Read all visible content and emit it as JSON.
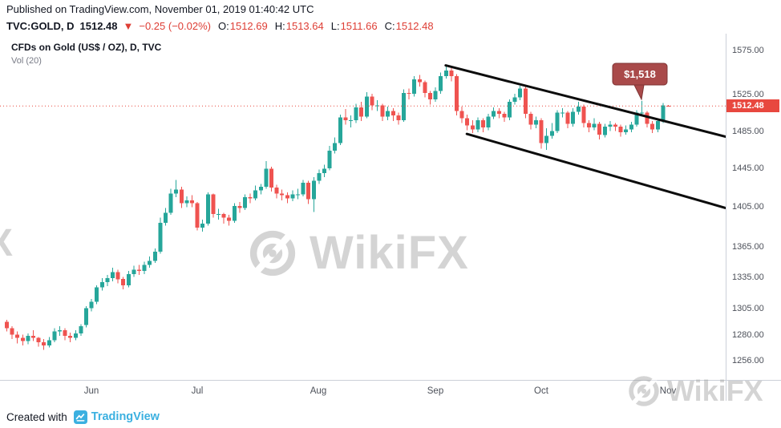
{
  "colors": {
    "up": "#26a69a",
    "down": "#ef5350",
    "negative_text": "#de3e35",
    "price_tag_bg": "#e8483f",
    "dotted_line": "#e8483f",
    "trendline": "#0c0c0c",
    "callout_bg": "#a94a4a",
    "callout_border": "#7e3434",
    "watermark": "#9a9a9a",
    "brand_blue": "#3bb0e0"
  },
  "header": {
    "published": "Published on TradingView.com, November 01, 2019 01:40:42 UTC",
    "symbol_interval": "TVC:GOLD, D",
    "last_price": "1512.48",
    "change_icon": "▼",
    "change": "−0.25 (−0.02%)",
    "ohlc": [
      {
        "label": "O:",
        "value": "1512.69"
      },
      {
        "label": "H:",
        "value": "1513.64"
      },
      {
        "label": "L:",
        "value": "1511.66"
      },
      {
        "label": "C:",
        "value": "1512.48"
      }
    ]
  },
  "legend": {
    "title": "CFDs on Gold (US$ / OZ), D, TVC",
    "indicator": "Vol (20)"
  },
  "watermark": {
    "text": "WikiFX",
    "partial_text": "X"
  },
  "footer": {
    "created_with": "Created with",
    "brand": "TradingView"
  },
  "chart_data": {
    "type": "candlestick",
    "title": "CFDs on Gold (US$ / OZ), D, TVC",
    "symbol": "TVC:GOLD",
    "interval": "D",
    "scale": "logarithmic",
    "ylim": [
      1238,
      1594
    ],
    "y_ticks": [
      1575,
      1525,
      1485,
      1445,
      1405,
      1365,
      1335,
      1305,
      1280,
      1256
    ],
    "x_axis_labels": [
      {
        "label": "Jun",
        "index": 16
      },
      {
        "label": "Jul",
        "index": 36
      },
      {
        "label": "Aug",
        "index": 59
      },
      {
        "label": "Sep",
        "index": 81
      },
      {
        "label": "Oct",
        "index": 101
      },
      {
        "label": "Nov",
        "index": 125
      }
    ],
    "candles": [
      [
        1292,
        1294,
        1283,
        1286
      ],
      [
        1286,
        1288,
        1276,
        1280
      ],
      [
        1280,
        1283,
        1272,
        1277
      ],
      [
        1277,
        1280,
        1270,
        1274
      ],
      [
        1274,
        1281,
        1271,
        1279
      ],
      [
        1279,
        1284,
        1274,
        1277
      ],
      [
        1277,
        1278,
        1269,
        1273
      ],
      [
        1273,
        1276,
        1266,
        1270
      ],
      [
        1270,
        1278,
        1268,
        1275
      ],
      [
        1275,
        1286,
        1273,
        1283
      ],
      [
        1283,
        1288,
        1279,
        1284
      ],
      [
        1284,
        1286,
        1275,
        1279
      ],
      [
        1279,
        1282,
        1273,
        1277
      ],
      [
        1277,
        1284,
        1275,
        1281
      ],
      [
        1281,
        1290,
        1279,
        1288
      ],
      [
        1289,
        1307,
        1287,
        1305
      ],
      [
        1305,
        1314,
        1302,
        1311
      ],
      [
        1311,
        1327,
        1309,
        1325
      ],
      [
        1325,
        1334,
        1322,
        1330
      ],
      [
        1330,
        1337,
        1326,
        1334
      ],
      [
        1334,
        1344,
        1331,
        1340
      ],
      [
        1340,
        1342,
        1329,
        1333
      ],
      [
        1333,
        1335,
        1323,
        1327
      ],
      [
        1327,
        1341,
        1325,
        1338
      ],
      [
        1338,
        1346,
        1335,
        1342
      ],
      [
        1342,
        1347,
        1337,
        1341
      ],
      [
        1341,
        1350,
        1338,
        1347
      ],
      [
        1347,
        1355,
        1344,
        1351
      ],
      [
        1351,
        1363,
        1349,
        1360
      ],
      [
        1360,
        1394,
        1358,
        1389
      ],
      [
        1389,
        1404,
        1386,
        1399
      ],
      [
        1399,
        1424,
        1397,
        1419
      ],
      [
        1419,
        1433,
        1415,
        1423
      ],
      [
        1423,
        1426,
        1404,
        1409
      ],
      [
        1409,
        1416,
        1405,
        1412
      ],
      [
        1412,
        1417,
        1405,
        1409
      ],
      [
        1409,
        1410,
        1381,
        1384
      ],
      [
        1384,
        1392,
        1380,
        1388
      ],
      [
        1388,
        1420,
        1386,
        1418
      ],
      [
        1418,
        1419,
        1394,
        1398
      ],
      [
        1398,
        1403,
        1392,
        1398
      ],
      [
        1398,
        1399,
        1388,
        1394
      ],
      [
        1394,
        1397,
        1386,
        1391
      ],
      [
        1391,
        1409,
        1389,
        1406
      ],
      [
        1406,
        1410,
        1399,
        1404
      ],
      [
        1404,
        1418,
        1402,
        1415
      ],
      [
        1415,
        1419,
        1409,
        1414
      ],
      [
        1414,
        1427,
        1412,
        1422
      ],
      [
        1422,
        1429,
        1418,
        1426
      ],
      [
        1426,
        1453,
        1424,
        1445
      ],
      [
        1445,
        1447,
        1421,
        1425
      ],
      [
        1425,
        1428,
        1414,
        1419
      ],
      [
        1419,
        1423,
        1412,
        1417
      ],
      [
        1417,
        1420,
        1409,
        1414
      ],
      [
        1414,
        1422,
        1411,
        1418
      ],
      [
        1418,
        1424,
        1413,
        1418
      ],
      [
        1418,
        1433,
        1416,
        1430
      ],
      [
        1430,
        1432,
        1408,
        1413
      ],
      [
        1413,
        1436,
        1400,
        1432
      ],
      [
        1432,
        1444,
        1429,
        1440
      ],
      [
        1440,
        1449,
        1436,
        1445
      ],
      [
        1445,
        1469,
        1443,
        1464
      ],
      [
        1464,
        1478,
        1461,
        1472
      ],
      [
        1472,
        1503,
        1470,
        1500
      ],
      [
        1500,
        1509,
        1492,
        1497
      ],
      [
        1497,
        1502,
        1489,
        1497
      ],
      [
        1497,
        1515,
        1494,
        1511
      ],
      [
        1511,
        1517,
        1496,
        1501
      ],
      [
        1501,
        1528,
        1499,
        1523
      ],
      [
        1523,
        1526,
        1508,
        1513
      ],
      [
        1513,
        1519,
        1507,
        1513
      ],
      [
        1513,
        1515,
        1496,
        1501
      ],
      [
        1501,
        1512,
        1497,
        1507
      ],
      [
        1507,
        1510,
        1496,
        1502
      ],
      [
        1502,
        1505,
        1492,
        1497
      ],
      [
        1497,
        1531,
        1495,
        1527
      ],
      [
        1527,
        1532,
        1520,
        1526
      ],
      [
        1526,
        1546,
        1523,
        1542
      ],
      [
        1542,
        1547,
        1534,
        1539
      ],
      [
        1539,
        1541,
        1522,
        1527
      ],
      [
        1527,
        1529,
        1514,
        1520
      ],
      [
        1520,
        1533,
        1517,
        1529
      ],
      [
        1529,
        1550,
        1526,
        1546
      ],
      [
        1546,
        1557,
        1543,
        1552
      ],
      [
        1552,
        1555,
        1540,
        1546
      ],
      [
        1546,
        1548,
        1502,
        1507
      ],
      [
        1507,
        1512,
        1494,
        1499
      ],
      [
        1499,
        1503,
        1486,
        1491
      ],
      [
        1491,
        1497,
        1483,
        1487
      ],
      [
        1487,
        1500,
        1484,
        1497
      ],
      [
        1497,
        1499,
        1484,
        1489
      ],
      [
        1489,
        1504,
        1486,
        1501
      ],
      [
        1501,
        1511,
        1498,
        1507
      ],
      [
        1507,
        1510,
        1499,
        1504
      ],
      [
        1504,
        1506,
        1495,
        1500
      ],
      [
        1500,
        1520,
        1497,
        1517
      ],
      [
        1517,
        1526,
        1514,
        1522
      ],
      [
        1522,
        1535,
        1519,
        1532
      ],
      [
        1532,
        1534,
        1499,
        1504
      ],
      [
        1504,
        1506,
        1487,
        1492
      ],
      [
        1492,
        1501,
        1488,
        1497
      ],
      [
        1497,
        1499,
        1466,
        1472
      ],
      [
        1472,
        1488,
        1465,
        1480
      ],
      [
        1480,
        1494,
        1477,
        1485
      ],
      [
        1485,
        1508,
        1483,
        1505
      ],
      [
        1505,
        1510,
        1500,
        1505
      ],
      [
        1505,
        1507,
        1488,
        1493
      ],
      [
        1493,
        1510,
        1490,
        1506
      ],
      [
        1506,
        1517,
        1503,
        1512
      ],
      [
        1512,
        1514,
        1489,
        1494
      ],
      [
        1494,
        1497,
        1484,
        1489
      ],
      [
        1489,
        1499,
        1486,
        1493
      ],
      [
        1493,
        1495,
        1476,
        1481
      ],
      [
        1481,
        1493,
        1478,
        1490
      ],
      [
        1490,
        1496,
        1485,
        1492
      ],
      [
        1492,
        1494,
        1485,
        1490
      ],
      [
        1490,
        1492,
        1479,
        1484
      ],
      [
        1484,
        1491,
        1481,
        1487
      ],
      [
        1487,
        1495,
        1484,
        1492
      ],
      [
        1492,
        1508,
        1490,
        1505
      ],
      [
        1505,
        1518,
        1502,
        1505
      ],
      [
        1505,
        1507,
        1489,
        1493
      ],
      [
        1493,
        1496,
        1483,
        1487
      ],
      [
        1487,
        1499,
        1484,
        1496
      ],
      [
        1496,
        1516,
        1494,
        1513
      ],
      [
        1512.69,
        1513.64,
        1511.66,
        1512.48
      ]
    ],
    "annotations": {
      "current_price_line": 1512.48,
      "trendlines": [
        {
          "i1": 83,
          "p1": 1558,
          "i2": 136,
          "p2": 1479
        },
        {
          "i1": 87,
          "p1": 1482,
          "i2": 136,
          "p2": 1404
        }
      ],
      "callout": {
        "text": "$1,518",
        "index": 120,
        "price": 1518
      }
    }
  }
}
